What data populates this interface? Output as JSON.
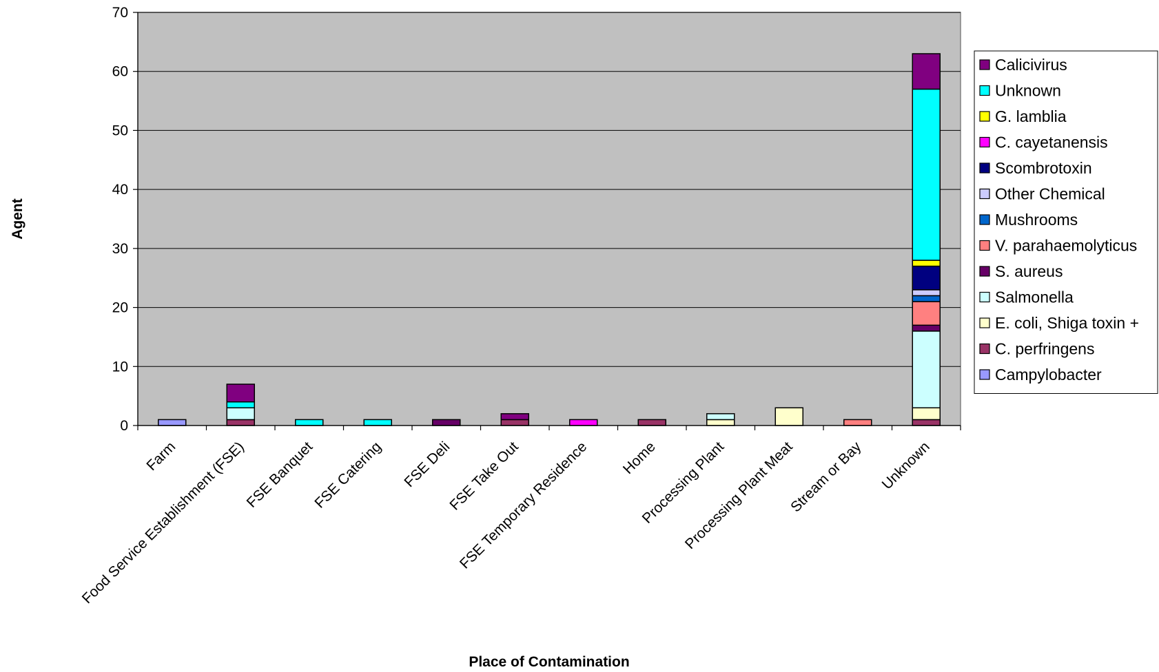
{
  "chart_data": {
    "type": "bar",
    "stacked": true,
    "title": "",
    "xlabel": "Place of Contamination",
    "ylabel": "Agent",
    "ylim": [
      0,
      70
    ],
    "yticks": [
      0,
      10,
      20,
      30,
      40,
      50,
      60,
      70
    ],
    "grid": true,
    "legend_position": "right",
    "plot_background": "#C0C0C0",
    "categories": [
      "Farm",
      "Food Service Establishment (FSE)",
      "FSE Banquet",
      "FSE Catering",
      "FSE Deli",
      "FSE Take Out",
      "FSE Temporary Residence",
      "Home",
      "Processing Plant",
      "Processing Plant Meat",
      "Stream or Bay",
      "Unknown"
    ],
    "series": [
      {
        "name": "Campylobacter",
        "color": "#9999FF",
        "values": [
          1,
          0,
          0,
          0,
          0,
          0,
          0,
          0,
          0,
          0,
          0,
          0
        ]
      },
      {
        "name": "C. perfringens",
        "color": "#993366",
        "values": [
          0,
          1,
          0,
          0,
          0,
          1,
          0,
          1,
          0,
          0,
          0,
          1
        ]
      },
      {
        "name": "E. coli, Shiga toxin +",
        "color": "#FFFFCC",
        "values": [
          0,
          0,
          0,
          0,
          0,
          0,
          0,
          0,
          1,
          3,
          0,
          2
        ]
      },
      {
        "name": "Salmonella",
        "color": "#CCFFFF",
        "values": [
          0,
          2,
          0,
          0,
          0,
          0,
          0,
          0,
          1,
          0,
          0,
          13
        ]
      },
      {
        "name": "S. aureus",
        "color": "#660066",
        "values": [
          0,
          0,
          0,
          0,
          1,
          0,
          0,
          0,
          0,
          0,
          0,
          1
        ]
      },
      {
        "name": "V. parahaemolyticus",
        "color": "#FF8080",
        "values": [
          0,
          0,
          0,
          0,
          0,
          0,
          0,
          0,
          0,
          0,
          1,
          4
        ]
      },
      {
        "name": "Mushrooms",
        "color": "#0066CC",
        "values": [
          0,
          0,
          0,
          0,
          0,
          0,
          0,
          0,
          0,
          0,
          0,
          1
        ]
      },
      {
        "name": "Other Chemical",
        "color": "#CCCCFF",
        "values": [
          0,
          0,
          0,
          0,
          0,
          0,
          0,
          0,
          0,
          0,
          0,
          1
        ]
      },
      {
        "name": "Scombrotoxin",
        "color": "#000080",
        "values": [
          0,
          0,
          0,
          0,
          0,
          0,
          0,
          0,
          0,
          0,
          0,
          4
        ]
      },
      {
        "name": "C. cayetanensis",
        "color": "#FF00FF",
        "values": [
          0,
          0,
          0,
          0,
          0,
          0,
          1,
          0,
          0,
          0,
          0,
          0
        ]
      },
      {
        "name": "G. lamblia",
        "color": "#FFFF00",
        "values": [
          0,
          0,
          0,
          0,
          0,
          0,
          0,
          0,
          0,
          0,
          0,
          1
        ]
      },
      {
        "name": "Unknown",
        "color": "#00FFFF",
        "values": [
          0,
          1,
          1,
          1,
          0,
          0,
          0,
          0,
          0,
          0,
          0,
          29
        ]
      },
      {
        "name": "Calicivirus",
        "color": "#800080",
        "values": [
          0,
          3,
          0,
          0,
          0,
          1,
          0,
          0,
          0,
          0,
          0,
          6
        ]
      }
    ]
  }
}
